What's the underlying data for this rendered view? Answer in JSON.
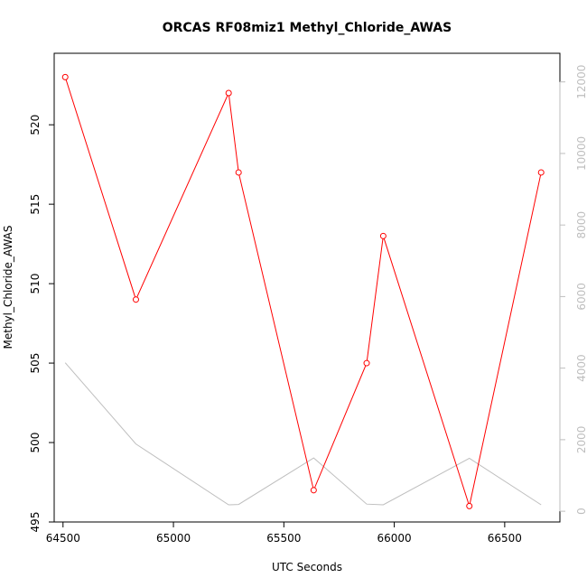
{
  "chart_data": {
    "type": "line",
    "title": "ORCAS RF08miz1 Methyl_Chloride_AWAS",
    "xlabel": "UTC Seconds",
    "ylabel": "Methyl_Chloride_AWAS",
    "xlim": [
      64460,
      66750
    ],
    "ylim": [
      495,
      524.5
    ],
    "y2lim": [
      -300,
      12800
    ],
    "x_ticks": [
      "64500",
      "65000",
      "65500",
      "66000",
      "66500"
    ],
    "y_ticks": [
      "495",
      "500",
      "505",
      "510",
      "515",
      "520"
    ],
    "y2_ticks": [
      "0",
      "2000",
      "4000",
      "6000",
      "8000",
      "10000",
      "12000"
    ],
    "grid": false,
    "series": [
      {
        "role": "primary",
        "color": "#ff0000",
        "markers": "open-circle",
        "x": [
          64510,
          64830,
          65250,
          65295,
          65635,
          65875,
          65950,
          66340,
          66665
        ],
        "y": [
          523,
          509,
          522,
          517,
          497,
          505,
          513,
          496,
          517
        ]
      },
      {
        "role": "secondary",
        "color": "#bebebe",
        "x": [
          64510,
          64830,
          65250,
          65295,
          65635,
          65875,
          65950,
          66340,
          66665
        ],
        "y": [
          4150,
          1880,
          180,
          190,
          1490,
          200,
          180,
          1480,
          180
        ]
      }
    ]
  }
}
